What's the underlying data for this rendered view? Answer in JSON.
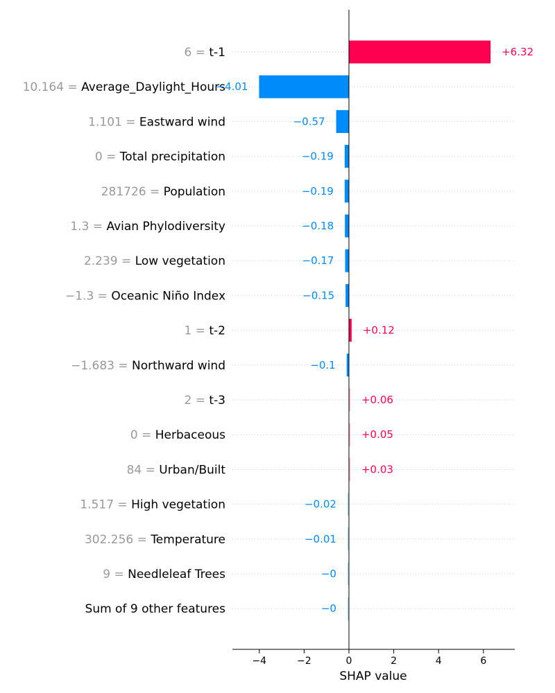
{
  "chart_data": {
    "type": "bar",
    "orientation": "horizontal",
    "xlabel": "SHAP value",
    "xlim": [
      -5.2,
      7.4
    ],
    "xticks": [
      -4,
      -2,
      0,
      2,
      4,
      6
    ],
    "xtick_labels": [
      "−4",
      "−2",
      "0",
      "2",
      "4",
      "6"
    ],
    "grid": "dotted horizontal per row",
    "colors": {
      "positive": "#ff0051",
      "negative": "#008bfb"
    },
    "features": [
      {
        "value_text": "6",
        "name": "t-1",
        "shap": 6.32,
        "label": "+6.32"
      },
      {
        "value_text": "10.164",
        "name": "Average_Daylight_Hours",
        "shap": -4.01,
        "label": "−4.01"
      },
      {
        "value_text": "1.101",
        "name": "Eastward wind",
        "shap": -0.57,
        "label": "−0.57"
      },
      {
        "value_text": "0",
        "name": "Total precipitation",
        "shap": -0.19,
        "label": "−0.19"
      },
      {
        "value_text": "281726",
        "name": "Population",
        "shap": -0.19,
        "label": "−0.19"
      },
      {
        "value_text": "1.3",
        "name": "Avian Phylodiversity",
        "shap": -0.18,
        "label": "−0.18"
      },
      {
        "value_text": "2.239",
        "name": "Low vegetation",
        "shap": -0.17,
        "label": "−0.17"
      },
      {
        "value_text": "−1.3",
        "name": "Oceanic Niño Index",
        "shap": -0.15,
        "label": "−0.15"
      },
      {
        "value_text": "1",
        "name": "t-2",
        "shap": 0.12,
        "label": "+0.12"
      },
      {
        "value_text": "−1.683",
        "name": "Northward wind",
        "shap": -0.1,
        "label": "−0.1"
      },
      {
        "value_text": "2",
        "name": "t-3",
        "shap": 0.06,
        "label": "+0.06"
      },
      {
        "value_text": "0",
        "name": "Herbaceous",
        "shap": 0.05,
        "label": "+0.05"
      },
      {
        "value_text": "84",
        "name": "Urban/Built",
        "shap": 0.03,
        "label": "+0.03"
      },
      {
        "value_text": "1.517",
        "name": "High vegetation",
        "shap": -0.02,
        "label": "−0.02"
      },
      {
        "value_text": "302.256",
        "name": "Temperature",
        "shap": -0.01,
        "label": "−0.01"
      },
      {
        "value_text": "9",
        "name": "Needleleaf Trees",
        "shap": -0.004,
        "label": "−0"
      },
      {
        "value_text": "",
        "name": "Sum of 9 other features",
        "shap": -0.004,
        "label": "−0"
      }
    ]
  }
}
